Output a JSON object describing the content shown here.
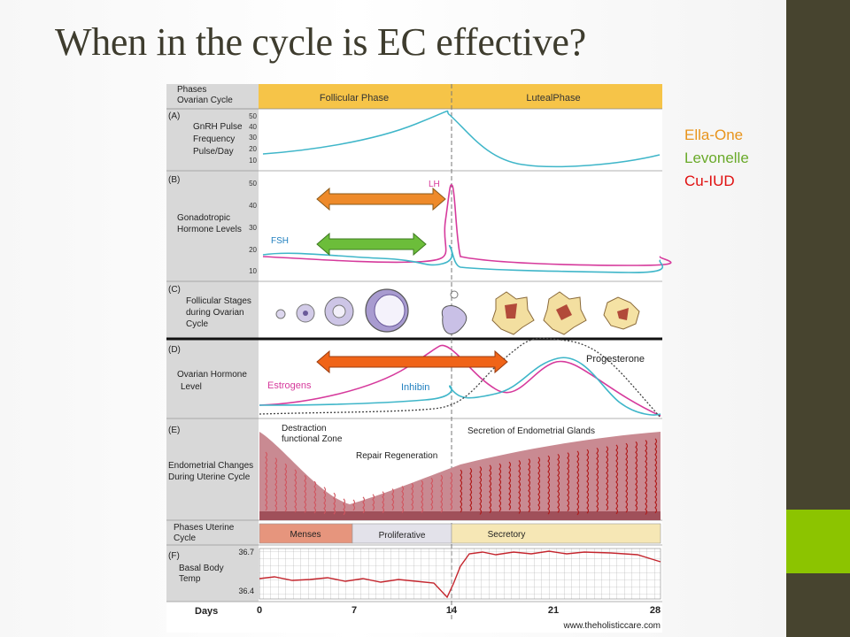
{
  "slide": {
    "title": "When in the cycle is EC effective?",
    "colors": {
      "sidebar": "#47442f",
      "sidebar_accent": "#8cc400",
      "title": "#3e3c2e"
    }
  },
  "legend": [
    {
      "label": "Ella-One",
      "color": "#e8941c"
    },
    {
      "label": "Levonelle",
      "color": "#6aaa2a"
    },
    {
      "label": "Cu-IUD",
      "color": "#e01010"
    }
  ],
  "figure": {
    "header_label": "Phases\nOvarian Cycle",
    "follicular_phase": "Follicular Phase",
    "luteal_phase": "LutealPhase",
    "panel_a": {
      "label": "(A)",
      "title": "GnRH Pulse\nFrequency\nPulse/Day",
      "ticks": [
        "50",
        "40",
        "30",
        "20",
        "10"
      ]
    },
    "panel_b": {
      "label": "(B)",
      "title": "Gonadotropic\nHormone Levels",
      "ticks": [
        "50",
        "40",
        "30",
        "20",
        "10"
      ],
      "lh_label": "LH",
      "fsh_label": "FSH"
    },
    "panel_c": {
      "label": "(C)",
      "title": "Follicular Stages\nduring Ovarian\nCycle"
    },
    "panel_d": {
      "label": "(D)",
      "title": "Ovarian Hormone\nLevel",
      "estrogens_label": "Estrogens",
      "inhibin_label": "Inhibin",
      "progesterone_label": "Progesterone"
    },
    "panel_e": {
      "label": "(E)",
      "title": "Endometrial Changes\nDuring Uterine Cycle",
      "destruction_label": "Destraction\nfunctional Zone",
      "repair_label": "Repair Regeneration",
      "secretion_label": "Secretion of Endometrial Glands"
    },
    "uterine_phases": {
      "title": "Phases Uterine\nCycle",
      "menses": "Menses",
      "proliferative": "Proliferative",
      "secretory": "Secretory"
    },
    "panel_f": {
      "label": "(F)",
      "title": "Basal Body\nTemp",
      "ticks": [
        "36.7",
        "36.4"
      ]
    },
    "days_label": "Days",
    "day_ticks": [
      "0",
      "7",
      "14",
      "21",
      "28"
    ],
    "credit": "www.theholisticcare.com"
  },
  "arrows": [
    {
      "legend": "Ella-One",
      "color": "#ee8a2a"
    },
    {
      "legend": "Levonelle",
      "color": "#6cbd3a"
    },
    {
      "legend": "Cu-IUD",
      "color": "#f06418"
    }
  ]
}
